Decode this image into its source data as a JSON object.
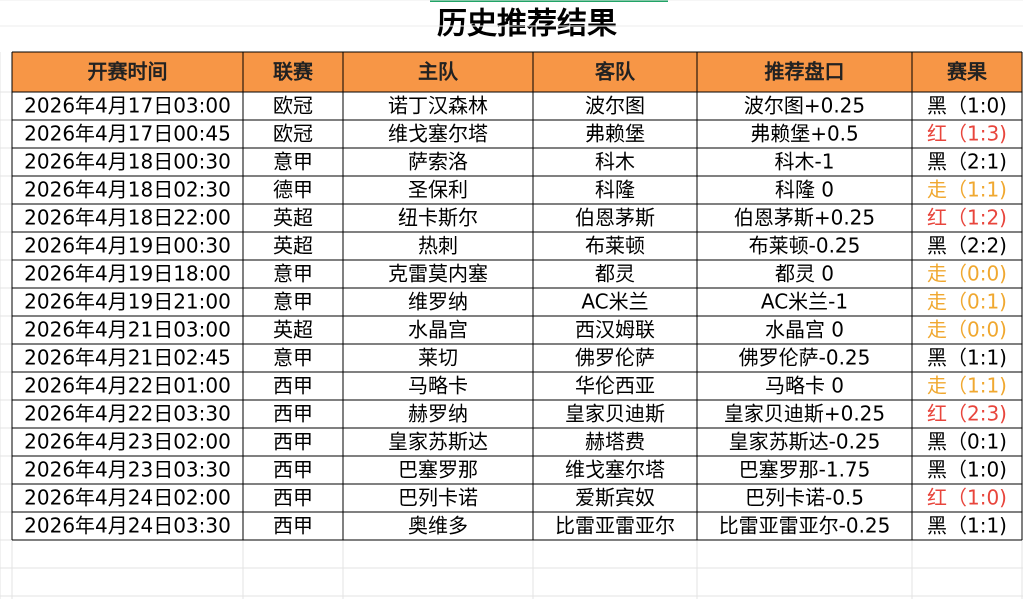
{
  "header": {
    "title": "历史推荐结果"
  },
  "table": {
    "header_color": "#f79646",
    "columns": [
      "开赛时间",
      "联赛",
      "主队",
      "客队",
      "推荐盘口",
      "赛果"
    ],
    "rows": [
      {
        "cells": [
          "2026年4月17日03:00",
          "欧冠",
          "诺丁汉森林",
          "波尔图",
          "波尔图+0.25",
          "黑（1:0)"
        ],
        "result_color": "#000000"
      },
      {
        "cells": [
          "2026年4月17日00:45",
          "欧冠",
          "维戈塞尔塔",
          "弗赖堡",
          "弗赖堡+0.5",
          "红（1:3)"
        ],
        "result_color": "#e8453c"
      },
      {
        "cells": [
          "2026年4月18日00:30",
          "意甲",
          "萨索洛",
          "科木",
          "科木-1",
          "黑（2:1)"
        ],
        "result_color": "#000000"
      },
      {
        "cells": [
          "2026年4月18日02:30",
          "德甲",
          "圣保利",
          "科隆",
          "科隆 0",
          "走（1:1)"
        ],
        "result_color": "#f0a830"
      },
      {
        "cells": [
          "2026年4月18日22:00",
          "英超",
          "纽卡斯尔",
          "伯恩茅斯",
          "伯恩茅斯+0.25",
          "红（1:2)"
        ],
        "result_color": "#e8453c"
      },
      {
        "cells": [
          "2026年4月19日00:30",
          "英超",
          "热刺",
          "布莱顿",
          "布莱顿-0.25",
          "黑（2:2)"
        ],
        "result_color": "#000000"
      },
      {
        "cells": [
          "2026年4月19日18:00",
          "意甲",
          "克雷莫内塞",
          "都灵",
          "都灵 0",
          "走（0:0)"
        ],
        "result_color": "#f0a830"
      },
      {
        "cells": [
          "2026年4月19日21:00",
          "意甲",
          "维罗纳",
          "AC米兰",
          "AC米兰-1",
          "走（0:1)"
        ],
        "result_color": "#f0a830"
      },
      {
        "cells": [
          "2026年4月21日03:00",
          "英超",
          "水晶宫",
          "西汉姆联",
          "水晶宫 0",
          "走（0:0)"
        ],
        "result_color": "#f0a830"
      },
      {
        "cells": [
          "2026年4月21日02:45",
          "意甲",
          "莱切",
          "佛罗伦萨",
          "佛罗伦萨-0.25",
          "黑（1:1)"
        ],
        "result_color": "#000000"
      },
      {
        "cells": [
          "2026年4月22日01:00",
          "西甲",
          "马略卡",
          "华伦西亚",
          "马略卡 0",
          "走（1:1)"
        ],
        "result_color": "#f0a830"
      },
      {
        "cells": [
          "2026年4月22日03:30",
          "西甲",
          "赫罗纳",
          "皇家贝迪斯",
          "皇家贝迪斯+0.25",
          "红（2:3)"
        ],
        "result_color": "#e8453c"
      },
      {
        "cells": [
          "2026年4月23日02:00",
          "西甲",
          "皇家苏斯达",
          "赫塔费",
          "皇家苏斯达-0.25",
          "黑（0:1)"
        ],
        "result_color": "#000000"
      },
      {
        "cells": [
          "2026年4月23日03:30",
          "西甲",
          "巴塞罗那",
          "维戈塞尔塔",
          "巴塞罗那-1.75",
          "黑（1:0)"
        ],
        "result_color": "#000000"
      },
      {
        "cells": [
          "2026年4月24日02:00",
          "西甲",
          "巴列卡诺",
          "爱斯宾奴",
          "巴列卡诺-0.5",
          "红（1:0)"
        ],
        "result_color": "#e8453c"
      },
      {
        "cells": [
          "2026年4月24日03:30",
          "西甲",
          "奥维多",
          "比雷亚雷亚尔",
          "比雷亚雷亚尔-0.25",
          "黑（1:1)"
        ],
        "result_color": "#000000"
      }
    ]
  }
}
